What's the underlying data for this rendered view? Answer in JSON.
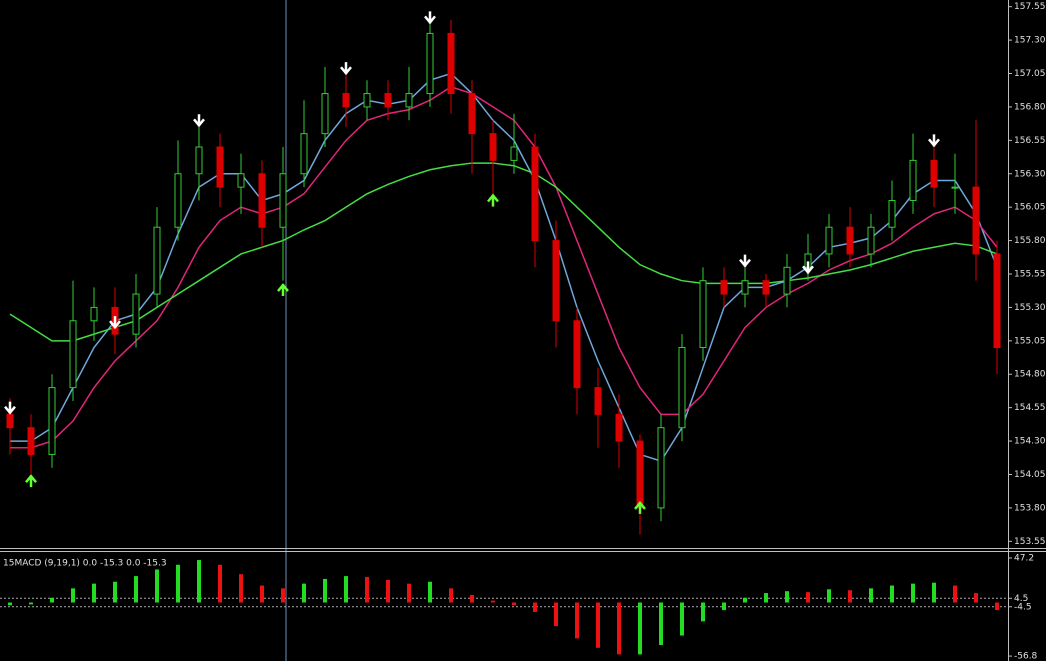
{
  "chart_data": [
    {
      "type": "candlestick",
      "open": [
        154.5,
        154.4,
        154.2,
        154.7,
        155.2,
        155.3,
        155.1,
        155.4,
        155.9,
        156.3,
        156.5,
        156.2,
        156.3,
        155.9,
        156.3,
        156.6,
        156.9,
        156.8,
        156.9,
        156.8,
        156.9,
        157.35,
        156.9,
        156.6,
        156.4,
        156.5,
        155.8,
        155.2,
        154.7,
        154.5,
        154.3,
        153.8,
        154.4,
        155.0,
        155.5,
        155.4,
        155.5,
        155.4,
        155.6,
        155.7,
        155.9,
        155.7,
        155.9,
        156.1,
        156.4,
        156.2,
        156.2,
        155.7
      ],
      "high": [
        154.62,
        154.5,
        154.8,
        155.5,
        155.45,
        155.45,
        155.55,
        156.05,
        156.55,
        156.65,
        156.6,
        156.45,
        156.4,
        156.5,
        156.85,
        157.1,
        157.05,
        157.0,
        157.0,
        157.1,
        157.5,
        157.45,
        157.0,
        156.7,
        156.75,
        156.6,
        155.95,
        155.3,
        154.85,
        154.65,
        154.35,
        154.5,
        155.1,
        155.6,
        155.6,
        155.6,
        155.55,
        155.7,
        155.85,
        156.0,
        156.05,
        156.0,
        156.25,
        156.6,
        156.55,
        156.45,
        156.7,
        155.8
      ],
      "low": [
        154.2,
        154.05,
        154.1,
        154.6,
        155.05,
        154.95,
        155.0,
        155.3,
        155.8,
        156.1,
        156.05,
        156.0,
        155.75,
        155.5,
        156.2,
        156.5,
        156.65,
        156.7,
        156.7,
        156.7,
        156.8,
        156.75,
        156.3,
        156.05,
        156.3,
        155.6,
        155.0,
        154.5,
        154.25,
        154.1,
        153.6,
        153.7,
        154.3,
        154.9,
        155.3,
        155.3,
        155.3,
        155.3,
        155.5,
        155.6,
        155.6,
        155.6,
        155.8,
        156.0,
        156.05,
        156.0,
        155.5,
        154.8
      ],
      "close": [
        154.4,
        154.2,
        154.7,
        155.2,
        155.3,
        155.1,
        155.4,
        155.9,
        156.3,
        156.5,
        156.2,
        156.3,
        155.9,
        156.3,
        156.6,
        156.9,
        156.8,
        156.9,
        156.8,
        156.9,
        157.35,
        156.9,
        156.6,
        156.4,
        156.5,
        155.8,
        155.2,
        154.7,
        154.5,
        154.3,
        153.8,
        154.4,
        155.0,
        155.5,
        155.4,
        155.5,
        155.4,
        155.6,
        155.7,
        155.9,
        155.7,
        155.9,
        156.1,
        156.4,
        156.2,
        156.2,
        155.7,
        155.0
      ],
      "up_color": "#33cc33",
      "down_color": "#dd0000",
      "series": [
        {
          "color": "#6fa8dc",
          "values": [
            154.3,
            154.3,
            154.4,
            154.7,
            155.0,
            155.2,
            155.25,
            155.45,
            155.85,
            156.2,
            156.3,
            156.3,
            156.1,
            156.15,
            156.25,
            156.55,
            156.75,
            156.85,
            156.82,
            156.85,
            157.0,
            157.05,
            156.9,
            156.7,
            156.55,
            156.25,
            155.8,
            155.3,
            154.9,
            154.55,
            154.2,
            154.15,
            154.4,
            154.85,
            155.3,
            155.45,
            155.45,
            155.5,
            155.6,
            155.75,
            155.78,
            155.82,
            155.95,
            156.15,
            156.25,
            156.25,
            156.0,
            155.6
          ]
        },
        {
          "color": "#e0267a",
          "values": [
            154.25,
            154.25,
            154.3,
            154.45,
            154.7,
            154.9,
            155.05,
            155.2,
            155.45,
            155.75,
            155.95,
            156.05,
            156.0,
            156.05,
            156.15,
            156.35,
            156.55,
            156.7,
            156.75,
            156.78,
            156.85,
            156.95,
            156.9,
            156.8,
            156.7,
            156.5,
            156.2,
            155.8,
            155.4,
            155.0,
            154.7,
            154.5,
            154.5,
            154.65,
            154.9,
            155.15,
            155.3,
            155.4,
            155.48,
            155.58,
            155.65,
            155.7,
            155.78,
            155.9,
            156.0,
            156.05,
            155.95,
            155.75
          ]
        },
        {
          "color": "#44dd44",
          "values": [
            155.25,
            155.15,
            155.05,
            155.05,
            155.1,
            155.15,
            155.2,
            155.3,
            155.4,
            155.5,
            155.6,
            155.7,
            155.75,
            155.8,
            155.88,
            155.95,
            156.05,
            156.15,
            156.22,
            156.28,
            156.33,
            156.36,
            156.38,
            156.38,
            156.36,
            156.3,
            156.2,
            156.05,
            155.9,
            155.75,
            155.62,
            155.55,
            155.5,
            155.48,
            155.48,
            155.48,
            155.48,
            155.5,
            155.52,
            155.55,
            155.58,
            155.62,
            155.67,
            155.72,
            155.75,
            155.78,
            155.76,
            155.7
          ]
        }
      ],
      "sell_signals": [
        154.55,
        null,
        null,
        null,
        null,
        155.19,
        null,
        null,
        null,
        156.7,
        null,
        null,
        null,
        null,
        null,
        null,
        157.09,
        null,
        null,
        null,
        157.47,
        null,
        null,
        null,
        null,
        null,
        null,
        null,
        null,
        null,
        null,
        null,
        null,
        null,
        null,
        155.65,
        null,
        null,
        155.6,
        null,
        null,
        null,
        null,
        null,
        156.55,
        null,
        null,
        null
      ],
      "buy_signals": [
        null,
        154.0,
        null,
        null,
        null,
        null,
        null,
        null,
        null,
        null,
        null,
        null,
        null,
        155.43,
        null,
        null,
        null,
        null,
        null,
        null,
        null,
        null,
        null,
        156.1,
        null,
        null,
        null,
        null,
        null,
        null,
        153.8,
        null,
        null,
        null,
        null,
        null,
        null,
        null,
        null,
        null,
        null,
        null,
        null,
        null,
        null,
        null,
        null,
        null
      ],
      "sell_color": "#ffffff",
      "buy_color": "#66ff33",
      "ylim": [
        153.5,
        157.6
      ],
      "yticks": [
        157.55,
        {
          "value": 157.3,
          "label": "157.30"
        },
        157.05,
        {
          "value": 156.8,
          "label": "156.80"
        },
        156.55,
        {
          "value": 156.3,
          "label": "156.30"
        },
        156.05,
        {
          "value": 155.8,
          "label": "155.80"
        },
        155.55,
        {
          "value": 155.3,
          "label": "155.30"
        },
        155.05,
        {
          "value": 154.8,
          "label": "154.80"
        },
        154.55,
        {
          "value": 154.3,
          "label": "154.30"
        },
        154.05,
        {
          "value": 153.8,
          "label": "153.80"
        },
        153.55
      ]
    },
    {
      "type": "bar",
      "title": "15MACD (9,19,1) 0.0 -15.3 0.0 -15.3",
      "values": [
        -3,
        -2,
        5,
        15,
        20,
        22,
        28,
        35,
        40,
        45,
        40,
        30,
        18,
        15,
        20,
        25,
        28,
        27,
        24,
        20,
        22,
        15,
        8,
        2,
        -3,
        -10,
        -25,
        -38,
        -48,
        -55,
        -55,
        -45,
        -35,
        -20,
        -8,
        5,
        10,
        12,
        11,
        14,
        13,
        15,
        18,
        20,
        21,
        18,
        10,
        -8
      ],
      "up_color": "#22dd22",
      "down_color": "#ee1111",
      "levels": [
        4.5,
        -4.5
      ],
      "ylim": [
        -62,
        54.6
      ],
      "yticks": [
        47.2,
        4.5,
        -4.5,
        -56.8
      ]
    }
  ]
}
